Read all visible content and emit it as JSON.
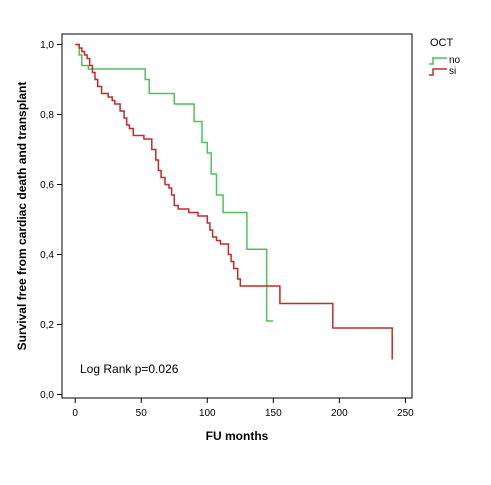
{
  "chart_data": {
    "type": "line",
    "ylabel": "Survival free from cardiac death and transplant",
    "xlabel": "FU months",
    "xlim": [
      -10,
      255
    ],
    "ylim": [
      -0.01,
      1.03
    ],
    "x_ticks": [
      0,
      50,
      100,
      150,
      200,
      250
    ],
    "x_tick_labels": [
      "0",
      "50",
      "100",
      "150",
      "200",
      "250"
    ],
    "y_ticks": [
      0.0,
      0.2,
      0.4,
      0.6,
      0.8,
      1.0
    ],
    "y_tick_labels": [
      "0,0",
      "0,2",
      "0,4",
      "0,6",
      "0,8",
      "1,0"
    ],
    "grid": false,
    "legend": {
      "title": "OCT",
      "placement": "right"
    },
    "annotation": "Log Rank p=0.026",
    "series": [
      {
        "name": "no",
        "color": "#4dc25a",
        "points": [
          [
            0,
            1.0
          ],
          [
            3,
            1.0
          ],
          [
            3,
            0.97
          ],
          [
            5,
            0.97
          ],
          [
            5,
            0.94
          ],
          [
            10,
            0.94
          ],
          [
            10,
            0.93
          ],
          [
            53,
            0.93
          ],
          [
            53,
            0.9
          ],
          [
            56,
            0.9
          ],
          [
            56,
            0.86
          ],
          [
            75,
            0.86
          ],
          [
            75,
            0.83
          ],
          [
            90,
            0.83
          ],
          [
            90,
            0.78
          ],
          [
            96,
            0.78
          ],
          [
            96,
            0.72
          ],
          [
            100,
            0.72
          ],
          [
            100,
            0.69
          ],
          [
            103,
            0.69
          ],
          [
            103,
            0.63
          ],
          [
            107,
            0.63
          ],
          [
            107,
            0.57
          ],
          [
            112,
            0.57
          ],
          [
            112,
            0.52
          ],
          [
            130,
            0.52
          ],
          [
            130,
            0.415
          ],
          [
            145,
            0.415
          ],
          [
            145,
            0.21
          ],
          [
            150,
            0.21
          ]
        ]
      },
      {
        "name": "si",
        "color": "#c42a2a",
        "points": [
          [
            0,
            1.0
          ],
          [
            3,
            1.0
          ],
          [
            3,
            0.99
          ],
          [
            5,
            0.99
          ],
          [
            5,
            0.98
          ],
          [
            7,
            0.98
          ],
          [
            7,
            0.97
          ],
          [
            9,
            0.97
          ],
          [
            9,
            0.96
          ],
          [
            11,
            0.96
          ],
          [
            11,
            0.94
          ],
          [
            13,
            0.94
          ],
          [
            13,
            0.92
          ],
          [
            15,
            0.92
          ],
          [
            15,
            0.9
          ],
          [
            17,
            0.9
          ],
          [
            17,
            0.88
          ],
          [
            20,
            0.88
          ],
          [
            20,
            0.86
          ],
          [
            25,
            0.86
          ],
          [
            25,
            0.85
          ],
          [
            28,
            0.85
          ],
          [
            28,
            0.84
          ],
          [
            30,
            0.84
          ],
          [
            30,
            0.83
          ],
          [
            34,
            0.83
          ],
          [
            34,
            0.81
          ],
          [
            37,
            0.81
          ],
          [
            37,
            0.79
          ],
          [
            39,
            0.79
          ],
          [
            39,
            0.77
          ],
          [
            41,
            0.77
          ],
          [
            41,
            0.76
          ],
          [
            44,
            0.76
          ],
          [
            44,
            0.74
          ],
          [
            52,
            0.74
          ],
          [
            52,
            0.73
          ],
          [
            58,
            0.73
          ],
          [
            58,
            0.7
          ],
          [
            61,
            0.7
          ],
          [
            61,
            0.67
          ],
          [
            63,
            0.67
          ],
          [
            63,
            0.64
          ],
          [
            65,
            0.64
          ],
          [
            65,
            0.62
          ],
          [
            68,
            0.62
          ],
          [
            68,
            0.6
          ],
          [
            71,
            0.6
          ],
          [
            71,
            0.59
          ],
          [
            73,
            0.59
          ],
          [
            73,
            0.57
          ],
          [
            75,
            0.57
          ],
          [
            75,
            0.54
          ],
          [
            78,
            0.54
          ],
          [
            78,
            0.53
          ],
          [
            86,
            0.53
          ],
          [
            86,
            0.52
          ],
          [
            93,
            0.52
          ],
          [
            93,
            0.51
          ],
          [
            100,
            0.51
          ],
          [
            100,
            0.49
          ],
          [
            102,
            0.49
          ],
          [
            102,
            0.47
          ],
          [
            104,
            0.47
          ],
          [
            104,
            0.45
          ],
          [
            107,
            0.45
          ],
          [
            107,
            0.44
          ],
          [
            110,
            0.44
          ],
          [
            110,
            0.43
          ],
          [
            116,
            0.43
          ],
          [
            116,
            0.4
          ],
          [
            118,
            0.4
          ],
          [
            118,
            0.38
          ],
          [
            120,
            0.38
          ],
          [
            120,
            0.36
          ],
          [
            123,
            0.36
          ],
          [
            123,
            0.33
          ],
          [
            125,
            0.33
          ],
          [
            125,
            0.31
          ],
          [
            155,
            0.31
          ],
          [
            155,
            0.26
          ],
          [
            195,
            0.26
          ],
          [
            195,
            0.19
          ],
          [
            240,
            0.19
          ],
          [
            240,
            0.1
          ]
        ]
      }
    ]
  }
}
